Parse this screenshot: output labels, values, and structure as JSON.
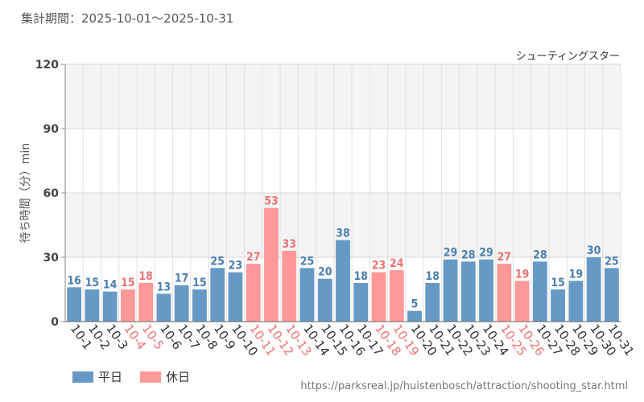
{
  "period_label": "集計期間：2025-10-01〜2025-10-31",
  "source_url": "https://parksreal.jp/huistenbosch/attraction/shooting_star.html",
  "legend": {
    "weekday_label": "平日",
    "holiday_label": "休日"
  },
  "colors": {
    "weekday": "#6699c5",
    "holiday": "#ff9898",
    "holiday_text": "#ee7272",
    "weekday_text": "#4a7fb0"
  },
  "chart_data": {
    "type": "bar",
    "title": "シューティングスター",
    "xlabel": "",
    "ylabel": "待ち時間（分）min",
    "ylim": [
      0,
      120
    ],
    "yticks": [
      0,
      30,
      60,
      90,
      120
    ],
    "categories": [
      "10-1",
      "10-2",
      "10-3",
      "10-4",
      "10-5",
      "10-6",
      "10-7",
      "10-8",
      "10-9",
      "10-10",
      "10-11",
      "10-12",
      "10-13",
      "10-14",
      "10-15",
      "10-16",
      "10-17",
      "10-18",
      "10-19",
      "10-20",
      "10-21",
      "10-22",
      "10-23",
      "10-24",
      "10-25",
      "10-26",
      "10-27",
      "10-28",
      "10-29",
      "10-30",
      "10-31"
    ],
    "values": [
      16,
      15,
      14,
      15,
      18,
      13,
      17,
      15,
      25,
      23,
      27,
      53,
      33,
      25,
      20,
      38,
      18,
      23,
      24,
      5,
      18,
      29,
      28,
      29,
      27,
      19,
      28,
      15,
      19,
      30,
      25
    ],
    "day_type": [
      "weekday",
      "weekday",
      "weekday",
      "holiday",
      "holiday",
      "weekday",
      "weekday",
      "weekday",
      "weekday",
      "weekday",
      "holiday",
      "holiday",
      "holiday",
      "weekday",
      "weekday",
      "weekday",
      "weekday",
      "holiday",
      "holiday",
      "weekday",
      "weekday",
      "weekday",
      "weekday",
      "weekday",
      "holiday",
      "holiday",
      "weekday",
      "weekday",
      "weekday",
      "weekday",
      "weekday"
    ]
  }
}
